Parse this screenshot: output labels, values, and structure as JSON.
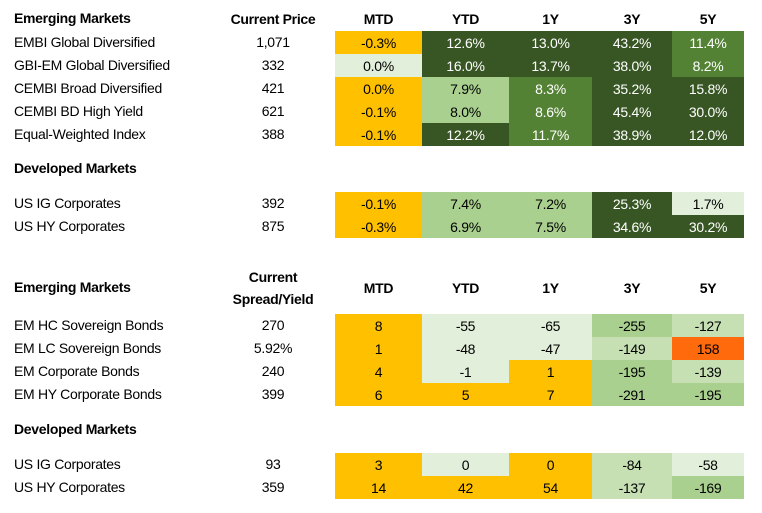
{
  "colors": {
    "amber": "#FFC000",
    "dark": "#375623",
    "mid": "#548235",
    "light": "#A9D08E",
    "pale": "#C6E0B4",
    "vlight": "#E2EFDA",
    "orange": "#FF6A0D"
  },
  "returns_table": {
    "headers": {
      "name": "Emerging Markets",
      "value": "Current Price",
      "periods": [
        "MTD",
        "YTD",
        "1Y",
        "3Y",
        "5Y"
      ]
    },
    "sections": [
      {
        "title": "",
        "rows": [
          {
            "name": "EMBI Global Diversified",
            "value": "1,071",
            "cells": [
              "-0.3%",
              "12.6%",
              "13.0%",
              "43.2%",
              "11.4%"
            ],
            "fills": [
              "amber",
              "dark",
              "dark",
              "dark",
              "mid"
            ]
          },
          {
            "name": "GBI-EM Global Diversified",
            "value": "332",
            "cells": [
              "0.0%",
              "16.0%",
              "13.7%",
              "38.0%",
              "8.2%"
            ],
            "fills": [
              "vlight",
              "dark",
              "dark",
              "dark",
              "mid"
            ]
          },
          {
            "name": "CEMBI Broad Diversified",
            "value": "421",
            "cells": [
              "0.0%",
              "7.9%",
              "8.3%",
              "35.2%",
              "15.8%"
            ],
            "fills": [
              "amber",
              "light",
              "mid",
              "dark",
              "dark"
            ]
          },
          {
            "name": "CEMBI BD High Yield",
            "value": "621",
            "cells": [
              "-0.1%",
              "8.0%",
              "8.6%",
              "45.4%",
              "30.0%"
            ],
            "fills": [
              "amber",
              "light",
              "mid",
              "dark",
              "dark"
            ]
          },
          {
            "name": "Equal-Weighted Index",
            "value": "388",
            "cells": [
              "-0.1%",
              "12.2%",
              "11.7%",
              "38.9%",
              "12.0%"
            ],
            "fills": [
              "amber",
              "dark",
              "mid",
              "dark",
              "dark"
            ]
          }
        ]
      },
      {
        "title": "Developed Markets",
        "rows": [
          {
            "name": "US IG Corporates",
            "value": "392",
            "cells": [
              "-0.1%",
              "7.4%",
              "7.2%",
              "25.3%",
              "1.7%"
            ],
            "fills": [
              "amber",
              "light",
              "light",
              "dark",
              "vlight"
            ]
          },
          {
            "name": "US HY Corporates",
            "value": "875",
            "cells": [
              "-0.3%",
              "6.9%",
              "7.5%",
              "34.6%",
              "30.2%"
            ],
            "fills": [
              "amber",
              "light",
              "light",
              "dark",
              "dark"
            ]
          }
        ]
      }
    ]
  },
  "spreads_table": {
    "headers": {
      "name": "Emerging Markets",
      "value_line1": "Current",
      "value_line2": "Spread/Yield",
      "periods": [
        "MTD",
        "YTD",
        "1Y",
        "3Y",
        "5Y"
      ]
    },
    "sections": [
      {
        "title": "",
        "rows": [
          {
            "name": "EM HC Sovereign Bonds",
            "value": "270",
            "cells": [
              "8",
              "-55",
              "-65",
              "-255",
              "-127"
            ],
            "fills": [
              "amber",
              "vlight",
              "vlight",
              "light",
              "pale"
            ]
          },
          {
            "name": "EM LC Sovereign Bonds",
            "value": "5.92%",
            "cells": [
              "1",
              "-48",
              "-47",
              "-149",
              "158"
            ],
            "fills": [
              "amber",
              "vlight",
              "vlight",
              "pale",
              "orange"
            ]
          },
          {
            "name": "EM Corporate Bonds",
            "value": "240",
            "cells": [
              "4",
              "-1",
              "1",
              "-195",
              "-139"
            ],
            "fills": [
              "amber",
              "vlight",
              "amber",
              "light",
              "pale"
            ]
          },
          {
            "name": "EM HY Corporate Bonds",
            "value": "399",
            "cells": [
              "6",
              "5",
              "7",
              "-291",
              "-195"
            ],
            "fills": [
              "amber",
              "amber",
              "amber",
              "light",
              "light"
            ]
          }
        ]
      },
      {
        "title": "Developed Markets",
        "rows": [
          {
            "name": "US IG Corporates",
            "value": "93",
            "cells": [
              "3",
              "0",
              "0",
              "-84",
              "-58"
            ],
            "fills": [
              "amber",
              "vlight",
              "amber",
              "pale",
              "vlight"
            ]
          },
          {
            "name": "US HY Corporates",
            "value": "359",
            "cells": [
              "14",
              "42",
              "54",
              "-137",
              "-169"
            ],
            "fills": [
              "amber",
              "amber",
              "amber",
              "pale",
              "light"
            ]
          }
        ]
      }
    ]
  }
}
